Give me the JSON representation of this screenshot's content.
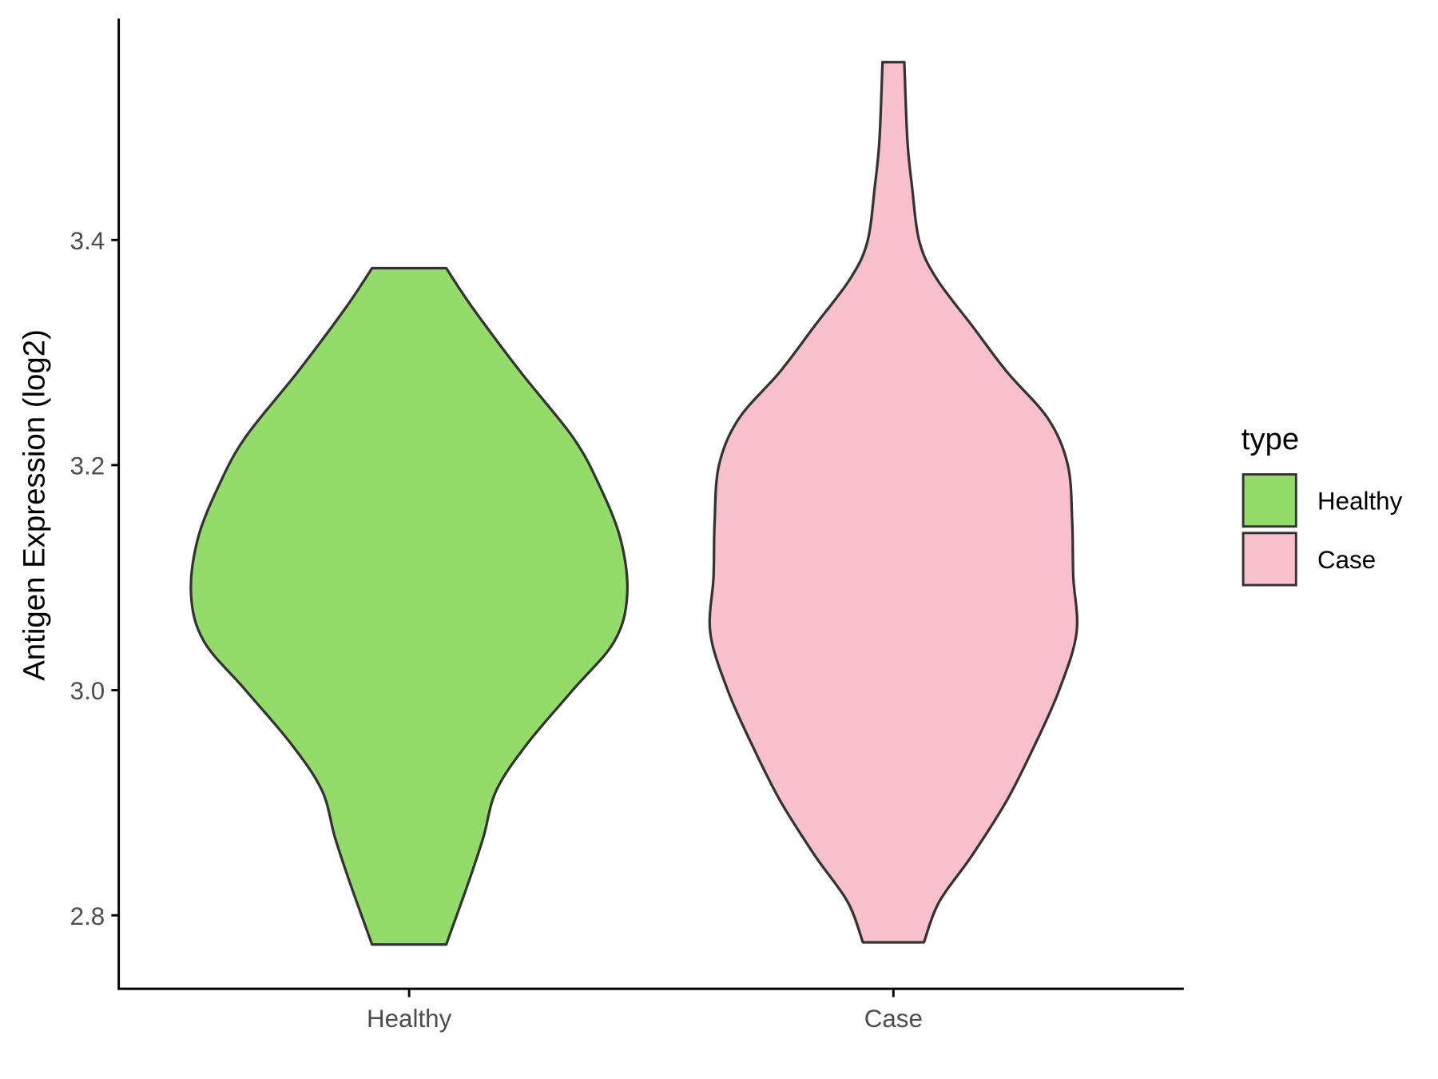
{
  "chart_data": {
    "type": "violin",
    "title": "",
    "xlabel": "",
    "ylabel": "Antigen Expression (log2)",
    "categories": [
      "Healthy",
      "Case"
    ],
    "yticks": [
      2.8,
      3.0,
      3.2,
      3.4
    ],
    "ytick_labels": [
      "2.8",
      "3.0",
      "3.2",
      "3.4"
    ],
    "ylim": [
      2.735,
      3.6
    ],
    "grid": false,
    "legend": {
      "title": "type",
      "position": "right",
      "entries": [
        "Healthy",
        "Case"
      ]
    },
    "series": [
      {
        "name": "Healthy",
        "color": "#93DC6A",
        "min": 2.774,
        "max": 3.375,
        "density_profile": [
          [
            3.375,
            0.17
          ],
          [
            3.34,
            0.29
          ],
          [
            3.283,
            0.51
          ],
          [
            3.225,
            0.75
          ],
          [
            3.183,
            0.87
          ],
          [
            3.134,
            0.97
          ],
          [
            3.084,
            1.0
          ],
          [
            3.043,
            0.94
          ],
          [
            3.0,
            0.75
          ],
          [
            2.952,
            0.54
          ],
          [
            2.911,
            0.4
          ],
          [
            2.869,
            0.34
          ],
          [
            2.828,
            0.27
          ],
          [
            2.774,
            0.17
          ]
        ]
      },
      {
        "name": "Case",
        "color": "#F7C0CB",
        "min": 2.776,
        "max": 3.558,
        "density_profile": [
          [
            3.558,
            0.05
          ],
          [
            3.489,
            0.064
          ],
          [
            3.448,
            0.085
          ],
          [
            3.398,
            0.12
          ],
          [
            3.365,
            0.2
          ],
          [
            3.324,
            0.36
          ],
          [
            3.283,
            0.52
          ],
          [
            3.241,
            0.71
          ],
          [
            3.2,
            0.8
          ],
          [
            3.15,
            0.82
          ],
          [
            3.101,
            0.825
          ],
          [
            3.051,
            0.84
          ],
          [
            3.0,
            0.76
          ],
          [
            2.952,
            0.65
          ],
          [
            2.902,
            0.52
          ],
          [
            2.853,
            0.36
          ],
          [
            2.812,
            0.21
          ],
          [
            2.776,
            0.14
          ]
        ]
      }
    ]
  },
  "colors": {
    "outline": "#333333",
    "axis": "#000000"
  }
}
